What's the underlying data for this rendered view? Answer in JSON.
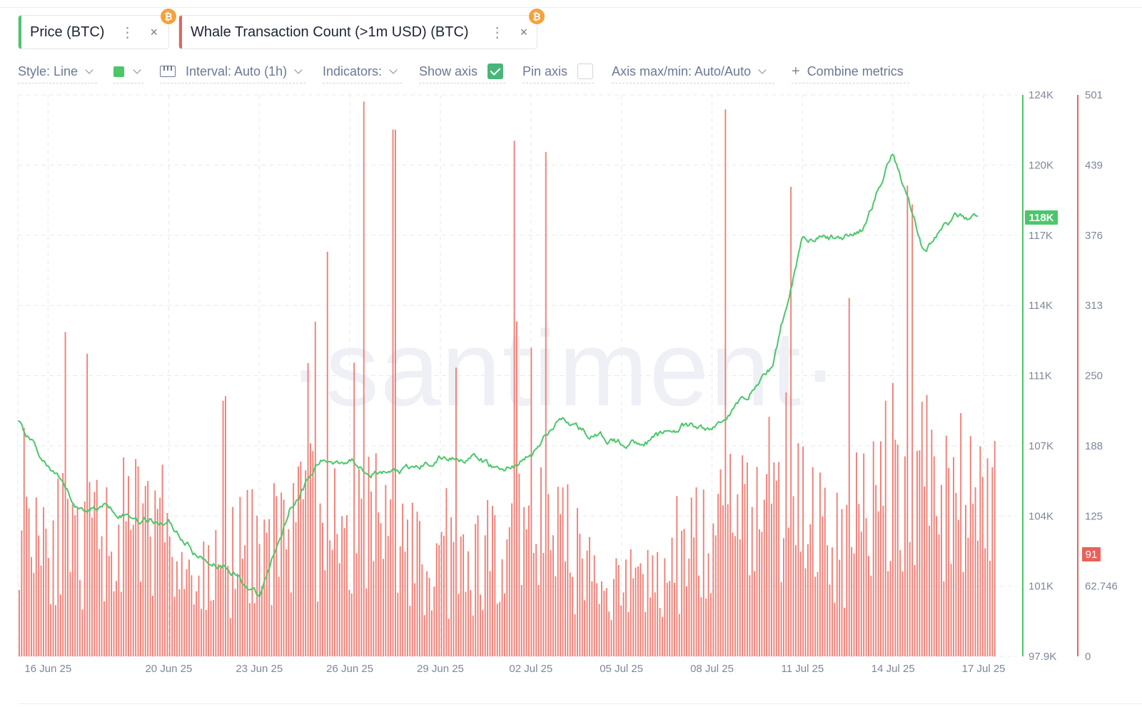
{
  "metrics": [
    {
      "label": "Price (BTC)",
      "color": "#4bc76a",
      "icon": "bitcoin-icon",
      "icon_glyph": "₿",
      "menu_glyph": "⋮",
      "close_glyph": "×"
    },
    {
      "label": "Whale Transaction Count (>1m USD) (BTC)",
      "color": "#e8625a",
      "icon": "bitcoin-icon",
      "icon_glyph": "₿",
      "menu_glyph": "⋮",
      "close_glyph": "×"
    }
  ],
  "toolbar": {
    "style_label": "Style: Line",
    "color_swatch": "#4bc76a",
    "interval_label": "Interval: Auto (1h)",
    "indicators_label": "Indicators:",
    "show_axis_label": "Show axis",
    "show_axis_checked": true,
    "pin_axis_label": "Pin axis",
    "pin_axis_checked": false,
    "axis_maxmin_label": "Axis max/min: Auto/Auto",
    "combine_label": "Combine metrics",
    "plus_glyph": "+"
  },
  "watermark": "·santiment·",
  "chart_data": {
    "type": "line",
    "x_tick_labels": [
      "16 Jun 25",
      "20 Jun 25",
      "23 Jun 25",
      "26 Jun 25",
      "29 Jun 25",
      "02 Jul 25",
      "05 Jul 25",
      "08 Jul 25",
      "11 Jul 25",
      "14 Jul 25",
      "17 Jul 25"
    ],
    "series": [
      {
        "name": "Price (BTC)",
        "type": "line",
        "color": "#4bc76a",
        "axis": "left",
        "x": [
          "2025-06-15",
          "2025-06-16",
          "2025-06-17",
          "2025-06-18",
          "2025-06-19",
          "2025-06-20",
          "2025-06-21",
          "2025-06-22",
          "2025-06-23",
          "2025-06-24",
          "2025-06-25",
          "2025-06-26",
          "2025-06-27",
          "2025-06-28",
          "2025-06-29",
          "2025-06-30",
          "2025-07-01",
          "2025-07-02",
          "2025-07-03",
          "2025-07-04",
          "2025-07-05",
          "2025-07-06",
          "2025-07-07",
          "2025-07-08",
          "2025-07-09",
          "2025-07-10",
          "2025-07-11",
          "2025-07-12",
          "2025-07-13",
          "2025-07-14",
          "2025-07-15",
          "2025-07-16"
        ],
        "values": [
          108700,
          106700,
          104700,
          104900,
          104300,
          104200,
          102500,
          102100,
          100600,
          104800,
          106900,
          107100,
          106400,
          106500,
          107100,
          107200,
          106500,
          107200,
          109000,
          108200,
          107800,
          108000,
          108600,
          108400,
          109800,
          111400,
          117500,
          117300,
          117700,
          121500,
          116800,
          118300
        ],
        "current_value_label": "118K"
      },
      {
        "name": "Whale Transaction Count (>1m USD) (BTC)",
        "type": "bar",
        "color": "#e8625a",
        "axis": "right",
        "x": [
          "2025-06-15",
          "2025-06-16",
          "2025-06-17",
          "2025-06-18",
          "2025-06-19",
          "2025-06-20",
          "2025-06-21",
          "2025-06-22",
          "2025-06-23",
          "2025-06-24",
          "2025-06-25",
          "2025-06-26",
          "2025-06-27",
          "2025-06-28",
          "2025-06-29",
          "2025-06-30",
          "2025-07-01",
          "2025-07-02",
          "2025-07-03",
          "2025-07-04",
          "2025-07-05",
          "2025-07-06",
          "2025-07-07",
          "2025-07-08",
          "2025-07-09",
          "2025-07-10",
          "2025-07-11",
          "2025-07-12",
          "2025-07-13",
          "2025-07-14",
          "2025-07-15",
          "2025-07-16"
        ],
        "values": [
          170,
          130,
          110,
          125,
          130,
          105,
          75,
          95,
          115,
          130,
          140,
          120,
          135,
          105,
          95,
          90,
          110,
          135,
          120,
          80,
          70,
          75,
          110,
          140,
          130,
          170,
          175,
          100,
          160,
          200,
          190,
          160
        ],
        "peaks": [
          {
            "x": "2025-06-26",
            "value": 495
          },
          {
            "x": "2025-06-27",
            "value": 470
          },
          {
            "x": "2025-07-01",
            "value": 460
          },
          {
            "x": "2025-07-02",
            "value": 450
          },
          {
            "x": "2025-07-08",
            "value": 488
          },
          {
            "x": "2025-07-14",
            "value": 420
          }
        ],
        "current_value_label": "91"
      }
    ],
    "y_left": {
      "ticks": [
        "124K",
        "120K",
        "117K",
        "114K",
        "111K",
        "107K",
        "104K",
        "101K",
        "97.9K"
      ],
      "min": 97900,
      "max": 124000,
      "color": "#4bc76a"
    },
    "y_right": {
      "ticks": [
        "501",
        "439",
        "376",
        "313",
        "250",
        "188",
        "125",
        "62.746",
        "0"
      ],
      "min": 0,
      "max": 501,
      "color": "#e8625a"
    },
    "grid": true
  }
}
